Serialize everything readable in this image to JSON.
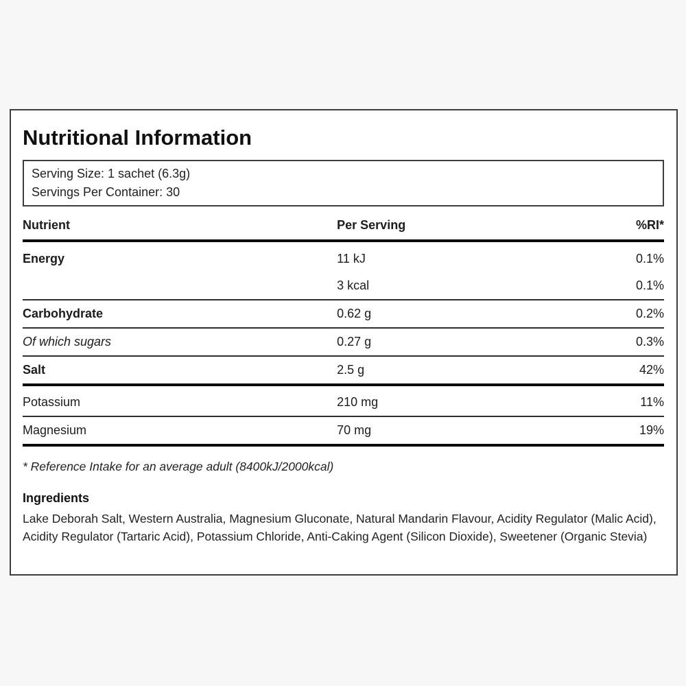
{
  "page": {
    "background_color": "#f7f7f7",
    "card_background_color": "#ffffff",
    "border_color": "#3d3d3d",
    "thick_rule_color": "#0a0a0a",
    "thin_rule_color": "#2e2e2e"
  },
  "header": {
    "title": "Nutritional Information"
  },
  "serving_info": {
    "serving_size": "Serving Size: 1 sachet (6.3g)",
    "servings_per_container": "Servings Per Container: 30"
  },
  "table": {
    "columns": {
      "nutrient": "Nutrient",
      "per_serving": "Per Serving",
      "ri": "%RI*"
    },
    "rows": [
      {
        "nutrient": "Energy",
        "per_serving": "11 kJ",
        "ri": "0.1%"
      },
      {
        "nutrient": "",
        "per_serving": "3 kcal",
        "ri": "0.1%"
      },
      {
        "nutrient": "Carbohydrate",
        "per_serving": "0.62 g",
        "ri": "0.2%"
      },
      {
        "nutrient": "Of which sugars",
        "per_serving": "0.27 g",
        "ri": "0.3%"
      },
      {
        "nutrient": "Salt",
        "per_serving": "2.5 g",
        "ri": "42%"
      },
      {
        "nutrient": "Potassium",
        "per_serving": "210 mg",
        "ri": "11%"
      },
      {
        "nutrient": "Magnesium",
        "per_serving": "70 mg",
        "ri": "19%"
      }
    ]
  },
  "footnote": "* Reference Intake for an average adult (8400kJ/2000kcal)",
  "ingredients": {
    "heading": "Ingredients",
    "text": "Lake Deborah Salt, Western Australia, Magnesium Gluconate, Natural Mandarin Flavour, Acidity Regulator (Malic Acid), Acidity Regulator (Tartaric Acid), Potassium Chloride, Anti-Caking Agent (Silicon Dioxide), Sweetener (Organic Stevia)"
  }
}
